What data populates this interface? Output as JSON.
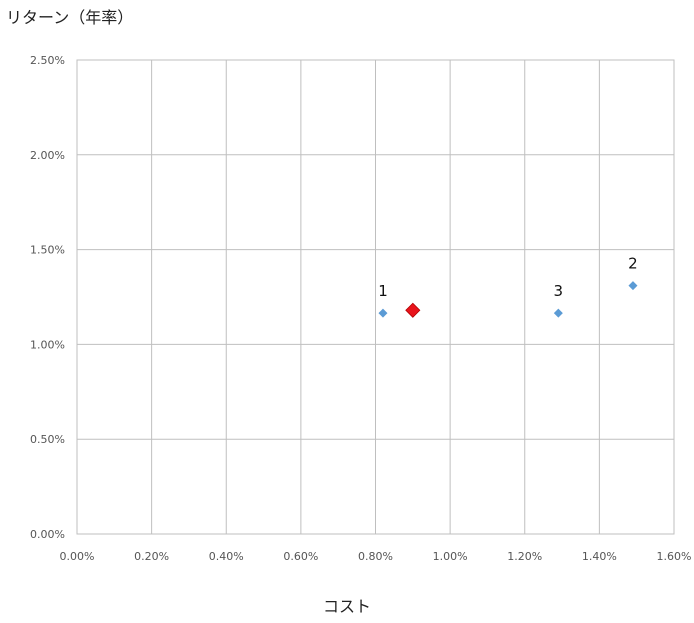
{
  "chart_data": {
    "type": "scatter",
    "title": "",
    "ylabel": "リターン（年率）",
    "xlabel": "コスト",
    "xlim": [
      0,
      0.016
    ],
    "ylim": [
      0,
      0.025
    ],
    "x_ticks": [
      "0.00%",
      "0.20%",
      "0.40%",
      "0.60%",
      "0.80%",
      "1.00%",
      "1.20%",
      "1.40%",
      "1.60%"
    ],
    "y_ticks": [
      "0.00%",
      "0.50%",
      "1.00%",
      "1.50%",
      "2.00%",
      "2.50%"
    ],
    "grid": true,
    "series": [
      {
        "color": "#5b9bd5",
        "marker": "diamond",
        "points": [
          {
            "x": 0.0082,
            "y": 0.01165,
            "label": "1"
          },
          {
            "x": 0.0149,
            "y": 0.0131,
            "label": "2"
          },
          {
            "x": 0.0129,
            "y": 0.01165,
            "label": "3"
          }
        ]
      },
      {
        "color": "#e8141c",
        "marker": "diamond",
        "points": [
          {
            "x": 0.009,
            "y": 0.0118,
            "label": ""
          }
        ]
      }
    ]
  }
}
